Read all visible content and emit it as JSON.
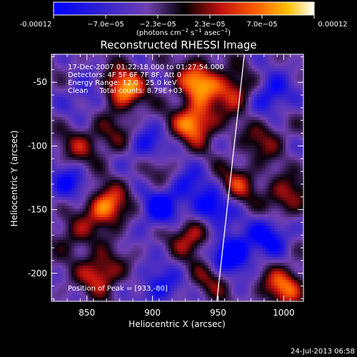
{
  "colorbar": {
    "ticks": [
      "-0.00012",
      "−7.0e−05",
      "−2.3e−05",
      "2.3e−05",
      "7.0e−05",
      "0.00012"
    ],
    "units_label": "(photons cm",
    "units_sup1": "−2",
    "units_mid": " s",
    "units_sup2": "−1",
    "units_end": " asec",
    "units_sup3": "−2",
    "units_close": ")",
    "min": -0.00012,
    "max": 0.00012
  },
  "chart_data": {
    "type": "heatmap",
    "title": "Reconstructed RHESSI Image",
    "xlabel": "Heliocentric X (arcsec)",
    "ylabel": "Heliocentric Y (arcsec)",
    "xlim": [
      823,
      1015
    ],
    "ylim": [
      -222,
      -28
    ],
    "xticks": [
      850,
      900,
      950,
      1000
    ],
    "yticks": [
      -50,
      -100,
      -150,
      -200
    ],
    "annotations": [
      "17-Dec-2007 01:22:18.000 to 01:27:54.000",
      "Detectors: 4F 5F 6F 7F 8F, Att 0",
      "Energy Range: 12.0 - 25.0 keV",
      "Clean     Total counts: 8.79E+03"
    ],
    "peak_label": "Position of Peak = [933,-80]",
    "peak": [
      933,
      -80
    ],
    "limb_line": [
      [
        949,
        -222
      ],
      [
        970,
        -28
      ]
    ],
    "sources": [
      {
        "x": 878,
        "y": -55,
        "v": 1.0
      },
      {
        "x": 935,
        "y": -50,
        "v": 0.95
      },
      {
        "x": 932,
        "y": -82,
        "v": 1.0
      },
      {
        "x": 962,
        "y": -58,
        "v": 0.7
      },
      {
        "x": 845,
        "y": -100,
        "v": 0.45
      },
      {
        "x": 872,
        "y": -92,
        "v": 0.35
      },
      {
        "x": 865,
        "y": -148,
        "v": 0.95
      },
      {
        "x": 860,
        "y": -200,
        "v": 0.75
      },
      {
        "x": 930,
        "y": -170,
        "v": 0.7
      },
      {
        "x": 965,
        "y": -130,
        "v": 0.55
      },
      {
        "x": 1002,
        "y": -140,
        "v": 0.6
      },
      {
        "x": 1000,
        "y": -210,
        "v": 0.8
      },
      {
        "x": 985,
        "y": -95,
        "v": 0.45
      },
      {
        "x": 905,
        "y": -120,
        "v": 0.3
      },
      {
        "x": 840,
        "y": -170,
        "v": 0.4
      },
      {
        "x": 945,
        "y": -205,
        "v": 0.4
      },
      {
        "x": 905,
        "y": -150,
        "v": -0.65
      },
      {
        "x": 945,
        "y": -150,
        "v": -0.7
      },
      {
        "x": 960,
        "y": -185,
        "v": -0.9
      },
      {
        "x": 895,
        "y": -100,
        "v": -0.5
      },
      {
        "x": 990,
        "y": -60,
        "v": -0.6
      },
      {
        "x": 990,
        "y": -170,
        "v": -0.6
      },
      {
        "x": 835,
        "y": -130,
        "v": -0.5
      },
      {
        "x": 905,
        "y": -210,
        "v": -0.5
      },
      {
        "x": 925,
        "y": -130,
        "v": -0.45
      },
      {
        "x": 850,
        "y": -60,
        "v": -0.35
      }
    ]
  },
  "footer": {
    "date": "24-Jul-2013 06:58"
  }
}
